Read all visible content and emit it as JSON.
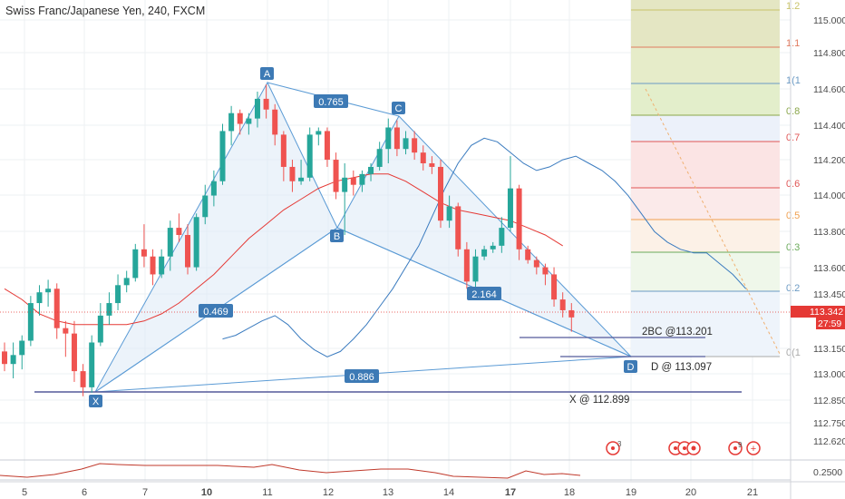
{
  "header": {
    "title": "Swiss Franc/Japanese Yen, 240, FXCM"
  },
  "colors": {
    "up": "#26a69a",
    "down": "#ef5350",
    "pattern_line": "#5b9bd5",
    "pattern_fill": "#dce9f5",
    "ma_fast": "#3a7bbf",
    "ma_slow": "#e53935",
    "label_bg": "#3d7ab5",
    "price_badge": "#e53935",
    "osc": "#c0392b"
  },
  "price_axis": {
    "ticks": [
      "115.000",
      "114.800",
      "114.600",
      "114.400",
      "114.200",
      "114.000",
      "113.800",
      "113.600",
      "113.450",
      "113.150",
      "113.000",
      "112.850",
      "112.750",
      "112.620"
    ],
    "last_price": "113.342",
    "countdown": "27:59",
    "osc_tick": "0.2500"
  },
  "time_axis": {
    "ticks": [
      "5",
      "6",
      "7",
      "10",
      "11",
      "12",
      "13",
      "14",
      "17",
      "18",
      "19",
      "20",
      "21"
    ]
  },
  "pattern": {
    "points": {
      "X": "X",
      "A": "A",
      "B": "B",
      "C": "C",
      "D": "D"
    },
    "ratios": {
      "xb": "0.469",
      "ac": "0.765",
      "bd": "2.164",
      "xd": "0.886"
    },
    "annotations": {
      "bc": "2BC @113.201",
      "d": "D @ 113.097",
      "x": "X @ 112.899"
    }
  },
  "fib_labels": [
    "1.2",
    "1.1",
    "1(1",
    "0.8",
    "0.7",
    "0.6",
    "0.5",
    "0.3",
    "0.2",
    "0(1"
  ],
  "event_markers": {
    "m1": "3",
    "m2": "9"
  },
  "chart_data": {
    "type": "candlestick",
    "title": "Swiss Franc/Japanese Yen, 240, FXCM",
    "candles": [
      [
        113.15,
        113.2,
        113.04,
        113.08
      ],
      [
        113.08,
        113.2,
        113.0,
        113.13
      ],
      [
        113.13,
        113.24,
        113.05,
        113.21
      ],
      [
        113.21,
        113.46,
        113.18,
        113.42
      ],
      [
        113.42,
        113.52,
        113.35,
        113.48
      ],
      [
        113.48,
        113.55,
        113.4,
        113.5
      ],
      [
        113.5,
        113.53,
        113.22,
        113.28
      ],
      [
        113.28,
        113.32,
        113.12,
        113.25
      ],
      [
        113.25,
        113.32,
        112.98,
        113.04
      ],
      [
        113.04,
        113.08,
        112.9,
        112.95
      ],
      [
        112.95,
        113.24,
        112.92,
        113.2
      ],
      [
        113.2,
        113.42,
        113.18,
        113.35
      ],
      [
        113.35,
        113.48,
        113.3,
        113.42
      ],
      [
        113.42,
        113.58,
        113.38,
        113.52
      ],
      [
        113.52,
        113.6,
        113.48,
        113.56
      ],
      [
        113.56,
        113.75,
        113.54,
        113.72
      ],
      [
        113.72,
        113.86,
        113.62,
        113.68
      ],
      [
        113.68,
        113.72,
        113.52,
        113.58
      ],
      [
        113.58,
        113.72,
        113.56,
        113.68
      ],
      [
        113.68,
        113.88,
        113.6,
        113.84
      ],
      [
        113.84,
        113.92,
        113.76,
        113.8
      ],
      [
        113.8,
        113.86,
        113.58,
        113.62
      ],
      [
        113.62,
        113.92,
        113.6,
        113.9
      ],
      [
        113.9,
        114.08,
        113.86,
        114.02
      ],
      [
        114.02,
        114.16,
        113.96,
        114.1
      ],
      [
        114.1,
        114.42,
        114.08,
        114.38
      ],
      [
        114.38,
        114.52,
        114.3,
        114.48
      ],
      [
        114.48,
        114.5,
        114.36,
        114.42
      ],
      [
        114.42,
        114.48,
        114.36,
        114.45
      ],
      [
        114.45,
        114.6,
        114.4,
        114.56
      ],
      [
        114.56,
        114.64,
        114.45,
        114.5
      ],
      [
        114.5,
        114.53,
        114.3,
        114.36
      ],
      [
        114.36,
        114.38,
        114.1,
        114.18
      ],
      [
        114.18,
        114.22,
        114.04,
        114.1
      ],
      [
        114.1,
        114.22,
        114.08,
        114.12
      ],
      [
        114.12,
        114.4,
        114.1,
        114.36
      ],
      [
        114.36,
        114.4,
        114.3,
        114.38
      ],
      [
        114.38,
        114.4,
        114.18,
        114.22
      ],
      [
        114.22,
        114.26,
        114.0,
        114.04
      ],
      [
        114.04,
        114.2,
        113.8,
        114.12
      ],
      [
        114.12,
        114.16,
        114.02,
        114.08
      ],
      [
        114.08,
        114.16,
        114.04,
        114.14
      ],
      [
        114.14,
        114.2,
        114.1,
        114.18
      ],
      [
        114.18,
        114.32,
        114.16,
        114.28
      ],
      [
        114.28,
        114.45,
        114.2,
        114.4
      ],
      [
        114.4,
        114.44,
        114.24,
        114.28
      ],
      [
        114.28,
        114.38,
        114.25,
        114.34
      ],
      [
        114.34,
        114.38,
        114.22,
        114.26
      ],
      [
        114.26,
        114.3,
        114.16,
        114.2
      ],
      [
        114.2,
        114.24,
        114.14,
        114.18
      ],
      [
        114.18,
        114.22,
        113.84,
        113.88
      ],
      [
        113.88,
        114.02,
        113.84,
        113.96
      ],
      [
        113.96,
        113.98,
        113.68,
        113.72
      ],
      [
        113.72,
        113.76,
        113.5,
        113.54
      ],
      [
        113.54,
        113.72,
        113.46,
        113.68
      ],
      [
        113.68,
        113.74,
        113.66,
        113.72
      ],
      [
        113.72,
        113.76,
        113.7,
        113.74
      ],
      [
        113.74,
        113.9,
        113.7,
        113.84
      ],
      [
        113.84,
        114.24,
        113.82,
        114.06
      ],
      [
        114.06,
        114.08,
        113.66,
        113.72
      ],
      [
        113.72,
        113.74,
        113.64,
        113.66
      ],
      [
        113.66,
        113.68,
        113.58,
        113.62
      ],
      [
        113.62,
        113.64,
        113.52,
        113.58
      ],
      [
        113.58,
        113.62,
        113.4,
        113.44
      ],
      [
        113.44,
        113.48,
        113.34,
        113.38
      ],
      [
        113.38,
        113.42,
        113.26,
        113.34
      ]
    ],
    "ma_fast": [
      113.22,
      113.24,
      113.28,
      113.32,
      113.35,
      113.3,
      113.22,
      113.16,
      113.12,
      113.15,
      113.22,
      113.3,
      113.4,
      113.5,
      113.62,
      113.74,
      113.9,
      114.06,
      114.2,
      114.3,
      114.34,
      114.32,
      114.26,
      114.2,
      114.16,
      114.18,
      114.22,
      114.24,
      114.2,
      114.16,
      114.1,
      114.02,
      113.92,
      113.82,
      113.76,
      113.72,
      113.7,
      113.7,
      113.64,
      113.58,
      113.5
    ],
    "ma_slow": [
      113.5,
      113.44,
      113.36,
      113.32,
      113.3,
      113.3,
      113.3,
      113.3,
      113.32,
      113.36,
      113.42,
      113.5,
      113.58,
      113.68,
      113.78,
      113.86,
      113.94,
      114.0,
      114.06,
      114.1,
      114.12,
      114.14,
      114.14,
      114.1,
      114.04,
      113.98,
      113.94,
      113.92,
      113.9,
      113.88,
      113.84,
      113.8,
      113.74
    ],
    "harmonic_pattern": {
      "X": 112.899,
      "A": 114.64,
      "B": 113.82,
      "C": 114.44,
      "D": 113.097
    },
    "levels": {
      "bc": 113.201,
      "d": 113.097,
      "x": 112.899
    }
  }
}
